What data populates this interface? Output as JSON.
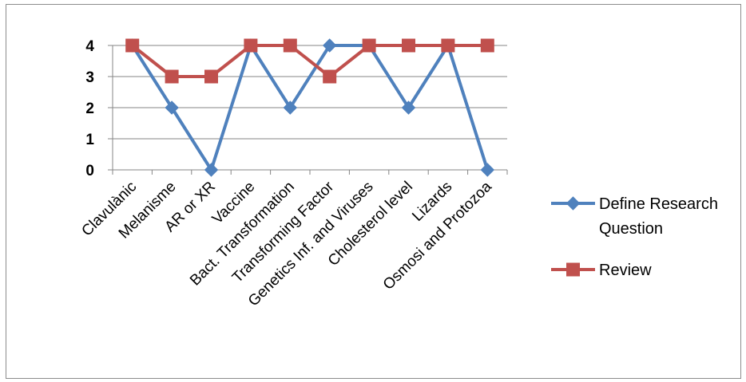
{
  "chart_data": {
    "type": "line",
    "categories": [
      "Clavulànic",
      "Melanisme",
      "AR or XR",
      "Vaccine",
      "Bact. Transformation",
      "Transforming Factor",
      "Genetics Inf. and Viruses",
      "Cholesterol level",
      "Lizards",
      "Osmosi and Protozoa"
    ],
    "ylim": [
      0,
      4
    ],
    "yticks": [
      0,
      1,
      2,
      3,
      4
    ],
    "grid": true,
    "legend_position": "right",
    "series": [
      {
        "name": "Define Research Question",
        "values": [
          4,
          2,
          0,
          4,
          2,
          4,
          4,
          2,
          4,
          0
        ],
        "color": "#4f81bd",
        "marker": "diamond"
      },
      {
        "name": "Review",
        "values": [
          4,
          3,
          3,
          4,
          4,
          3,
          4,
          4,
          4,
          4
        ],
        "color": "#c0504d",
        "marker": "square"
      }
    ]
  }
}
